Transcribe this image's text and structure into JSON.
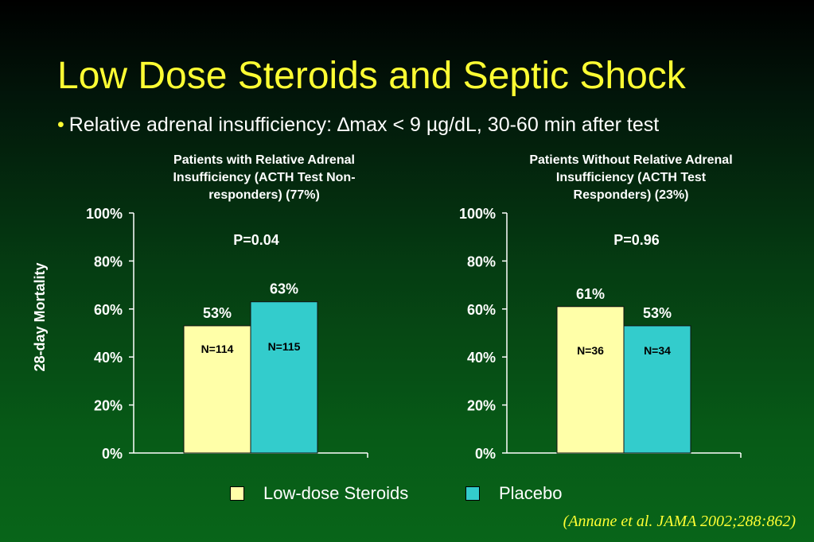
{
  "slide": {
    "title": "Low Dose Steroids and Septic Shock",
    "bullet": "Relative adrenal insufficiency: ∆max < 9 µg/dL, 30-60 min after test",
    "bullet_mark": "•",
    "ylabel": "28-day Mortality",
    "citation": "(Annane et al. JAMA 2002;288:862)"
  },
  "legend": {
    "items": [
      {
        "label": "Low-dose Steroids",
        "color": "#ffffa8"
      },
      {
        "label": "Placebo",
        "color": "#33cccc"
      }
    ]
  },
  "chart_data": [
    {
      "type": "bar",
      "title": "Patients with Relative Adrenal Insufficiency (ACTH Test Non-responders)  (77%)",
      "title_lines": [
        "Patients with Relative Adrenal",
        "Insufficiency (ACTH Test Non-",
        "responders)  (77%)"
      ],
      "annotation": "P=0.04",
      "ylim": [
        0,
        100
      ],
      "yticks": [
        "0%",
        "20%",
        "40%",
        "60%",
        "80%",
        "100%"
      ],
      "ytick_values": [
        0,
        20,
        40,
        60,
        80,
        100
      ],
      "grid": false,
      "bars": [
        {
          "series": "Low-dose Steroids",
          "value": 53,
          "label": "53%",
          "n_label": "N=114",
          "color": "#ffffa8"
        },
        {
          "series": "Placebo",
          "value": 63,
          "label": "63%",
          "n_label": "N=115",
          "color": "#33cccc"
        }
      ]
    },
    {
      "type": "bar",
      "title": "Patients Without Relative Adrenal Insufficiency (ACTH Test Responders)  (23%)",
      "title_lines": [
        "Patients Without Relative Adrenal",
        "Insufficiency (ACTH Test",
        "Responders)  (23%)"
      ],
      "annotation": "P=0.96",
      "ylim": [
        0,
        100
      ],
      "yticks": [
        "0%",
        "20%",
        "40%",
        "60%",
        "80%",
        "100%"
      ],
      "ytick_values": [
        0,
        20,
        40,
        60,
        80,
        100
      ],
      "grid": false,
      "bars": [
        {
          "series": "Low-dose Steroids",
          "value": 61,
          "label": "61%",
          "n_label": "N=36",
          "color": "#ffffa8"
        },
        {
          "series": "Placebo",
          "value": 53,
          "label": "53%",
          "n_label": "N=34",
          "color": "#33cccc"
        }
      ]
    }
  ]
}
